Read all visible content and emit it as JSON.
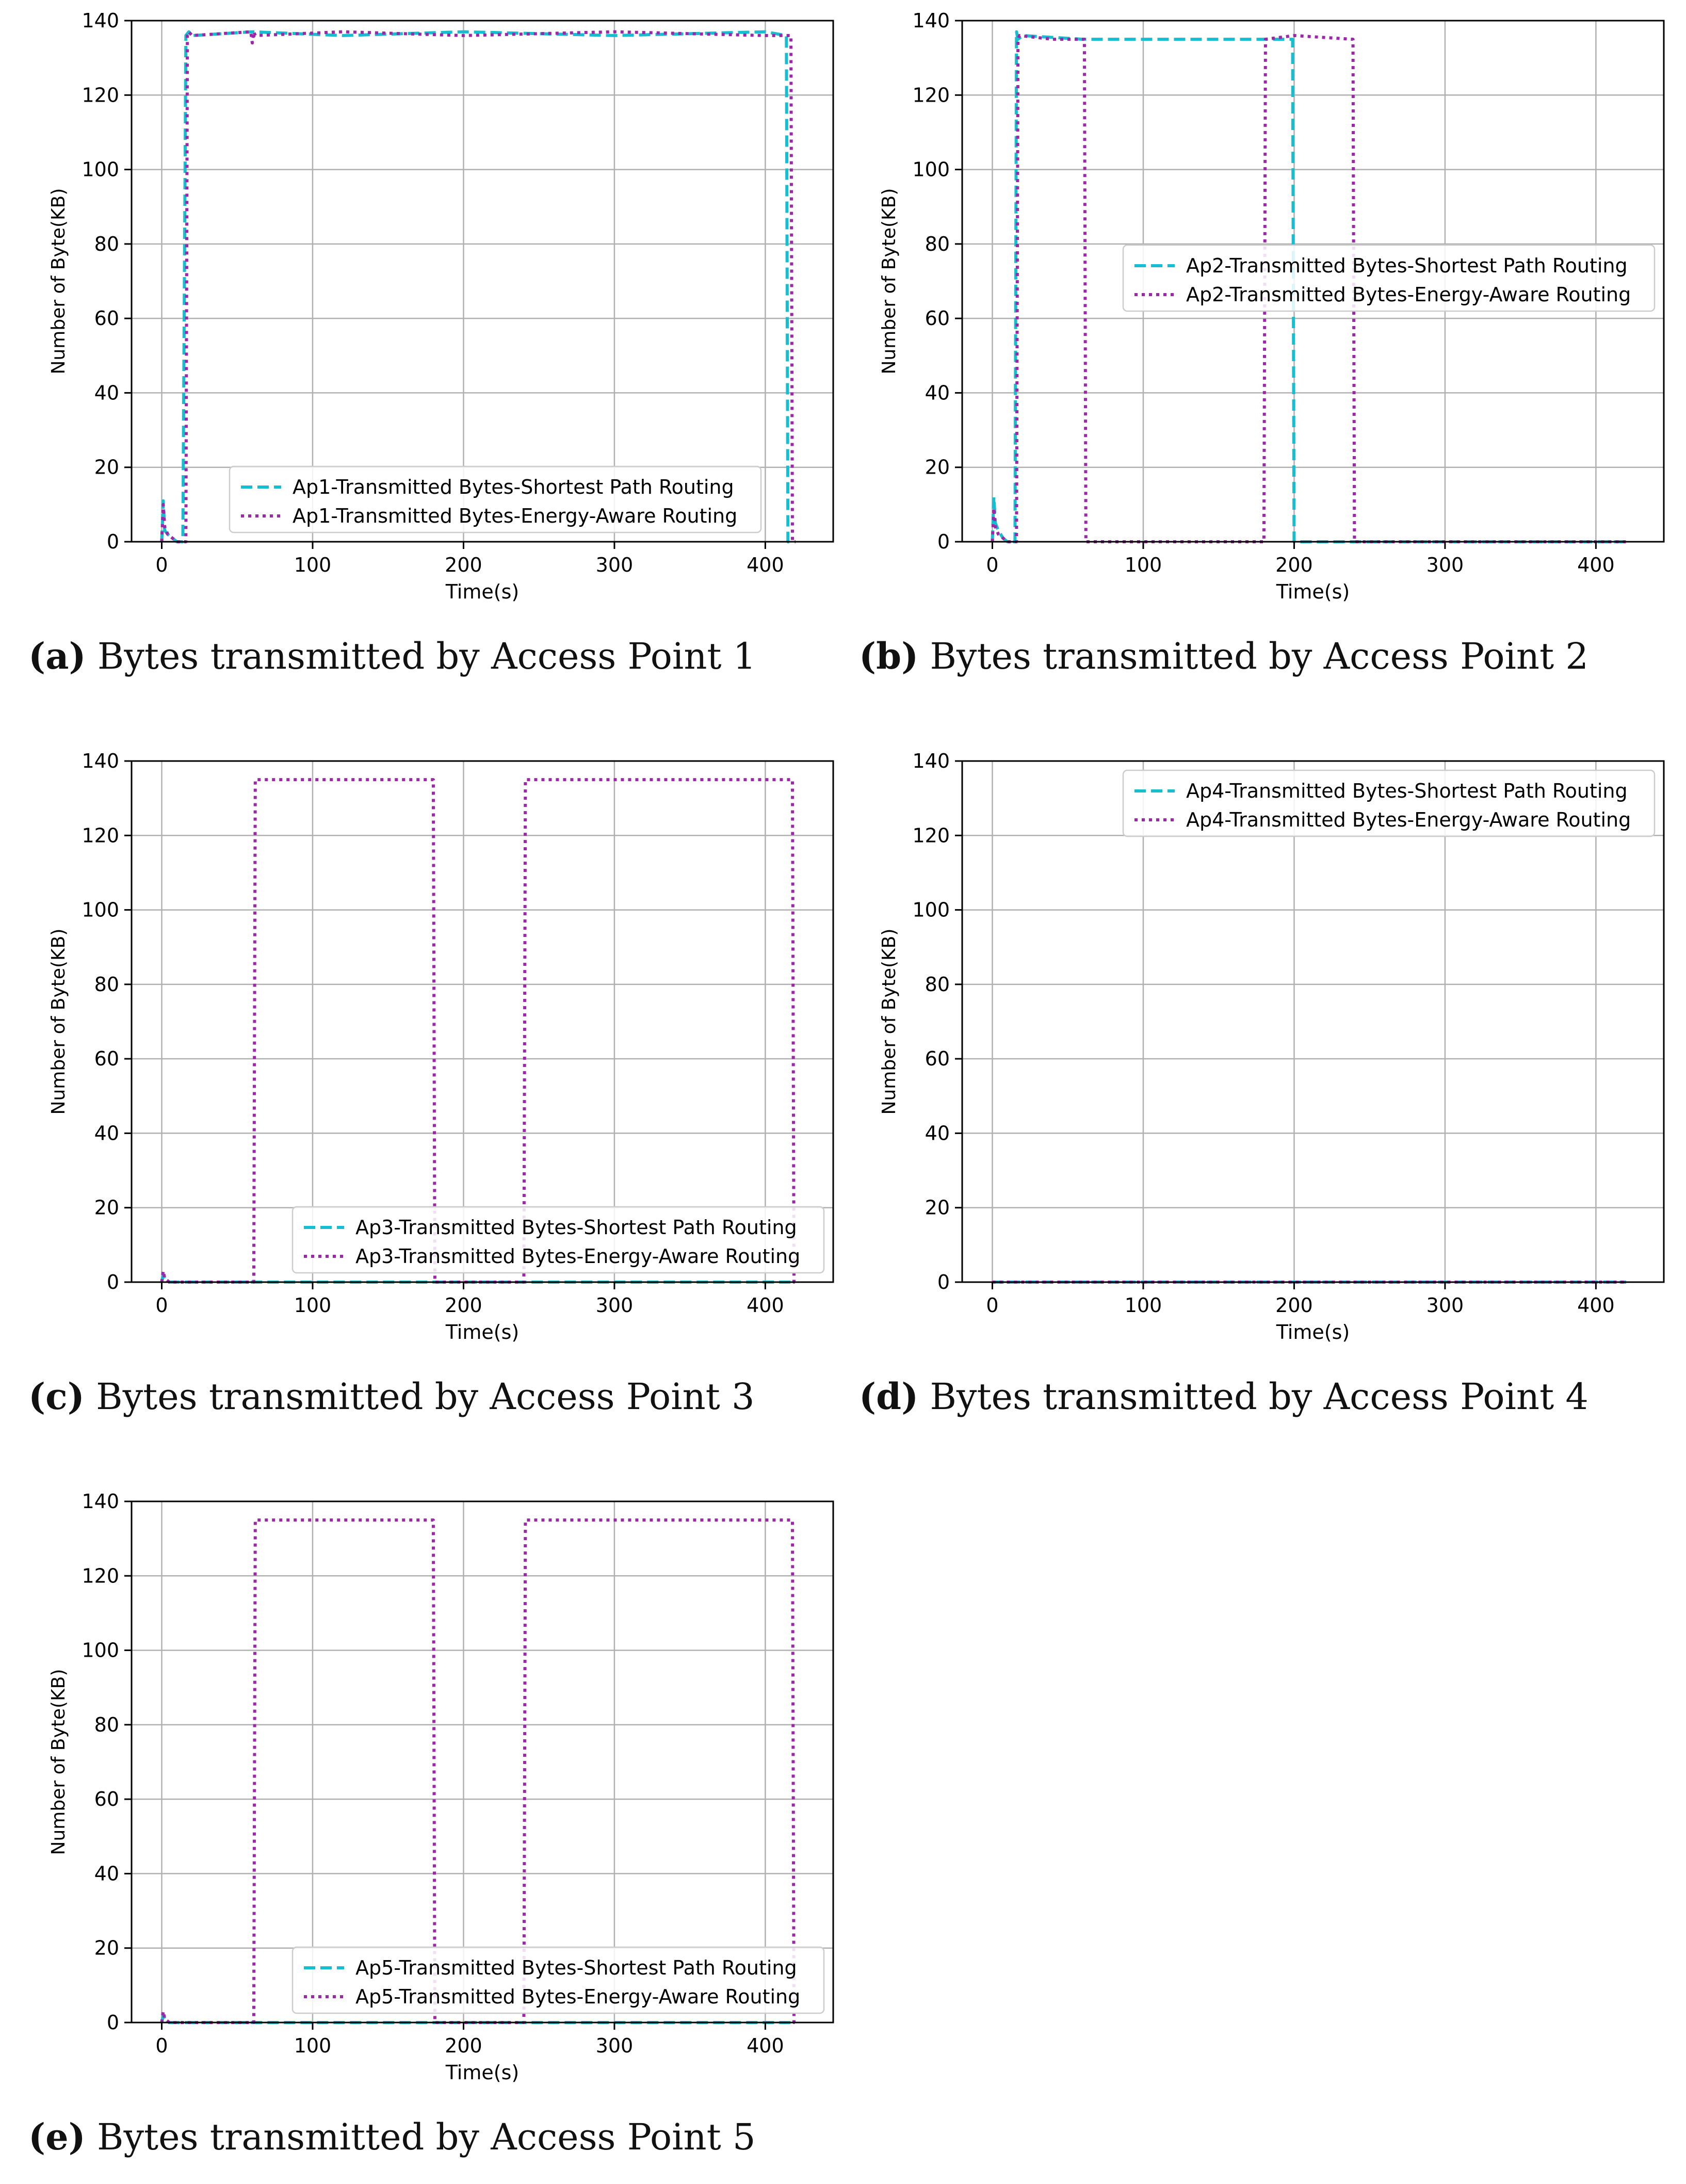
{
  "figure": {
    "colors": {
      "shortest": "#17becf",
      "energy": "#9c27a8",
      "grid": "#b0b0b0",
      "axis": "#000000"
    }
  },
  "chart_data": [
    {
      "id": "a",
      "type": "line",
      "caption_tag": "(a)",
      "caption_text": "Bytes transmitted by Access Point 1",
      "xlabel": "Time(s)",
      "ylabel": "Number of Byte(KB)",
      "xlim": [
        -20,
        445
      ],
      "ylim": [
        0,
        140
      ],
      "xticks": [
        0,
        100,
        200,
        300,
        400
      ],
      "yticks": [
        0,
        20,
        40,
        60,
        80,
        100,
        120,
        140
      ],
      "grid": true,
      "legend_position": "lower-center",
      "series": [
        {
          "name": "Ap1-Transmitted Bytes-Shortest Path Routing",
          "style": "dashed",
          "color": "#17becf",
          "x": [
            0,
            1,
            2,
            4,
            7,
            10,
            14,
            16,
            18,
            20,
            60,
            120,
            200,
            300,
            400,
            414,
            415,
            417
          ],
          "y": [
            0,
            11,
            3,
            2,
            1,
            0,
            0,
            136,
            137,
            136,
            137,
            136,
            137,
            136,
            137,
            136,
            0,
            0
          ]
        },
        {
          "name": "Ap1-Transmitted Bytes-Energy-Aware Routing",
          "style": "dotted",
          "color": "#9c27a8",
          "x": [
            0,
            1,
            2,
            4,
            7,
            10,
            16,
            17,
            18,
            20,
            59,
            60,
            61,
            62,
            120,
            200,
            300,
            400,
            417,
            418,
            420
          ],
          "y": [
            0,
            10,
            4,
            2,
            1,
            0,
            0,
            136,
            137,
            136,
            137,
            134,
            137,
            136,
            137,
            136,
            137,
            136,
            136,
            0,
            0
          ]
        }
      ]
    },
    {
      "id": "b",
      "type": "line",
      "caption_tag": "(b)",
      "caption_text": "Bytes transmitted by Access Point 2",
      "xlabel": "Time(s)",
      "ylabel": "Number of Byte(KB)",
      "xlim": [
        -20,
        445
      ],
      "ylim": [
        0,
        140
      ],
      "xticks": [
        0,
        100,
        200,
        300,
        400
      ],
      "yticks": [
        0,
        20,
        40,
        60,
        80,
        100,
        120,
        140
      ],
      "grid": true,
      "legend_position": "center-right",
      "series": [
        {
          "name": "Ap2-Transmitted Bytes-Shortest Path Routing",
          "style": "dashed",
          "color": "#17becf",
          "x": [
            0,
            1,
            2,
            4,
            7,
            10,
            15,
            16,
            17,
            20,
            60,
            100,
            150,
            199,
            200,
            240,
            300,
            420
          ],
          "y": [
            0,
            12,
            5,
            3,
            1,
            0,
            0,
            137,
            135,
            136,
            135,
            135,
            135,
            135,
            0,
            0,
            0,
            0
          ]
        },
        {
          "name": "Ap2-Transmitted Bytes-Energy-Aware Routing",
          "style": "dotted",
          "color": "#9c27a8",
          "x": [
            0,
            1,
            2,
            4,
            7,
            10,
            16,
            17,
            18,
            40,
            61,
            62,
            100,
            180,
            181,
            200,
            239,
            240,
            300,
            420
          ],
          "y": [
            0,
            9,
            4,
            2,
            1,
            0,
            0,
            135,
            136,
            135,
            135,
            0,
            0,
            0,
            135,
            136,
            135,
            0,
            0,
            0
          ]
        }
      ]
    },
    {
      "id": "c",
      "type": "line",
      "caption_tag": "(c)",
      "caption_text": "Bytes transmitted by Access Point 3",
      "xlabel": "Time(s)",
      "ylabel": "Number of Byte(KB)",
      "xlim": [
        -20,
        445
      ],
      "ylim": [
        0,
        140
      ],
      "xticks": [
        0,
        100,
        200,
        300,
        400
      ],
      "yticks": [
        0,
        20,
        40,
        60,
        80,
        100,
        120,
        140
      ],
      "grid": true,
      "legend_position": "lower-right",
      "series": [
        {
          "name": "Ap3-Transmitted Bytes-Shortest Path Routing",
          "style": "dashed",
          "color": "#17becf",
          "x": [
            0,
            1,
            2,
            5,
            10,
            420
          ],
          "y": [
            0,
            2,
            1,
            0,
            0,
            0
          ]
        },
        {
          "name": "Ap3-Transmitted Bytes-Energy-Aware Routing",
          "style": "dotted",
          "color": "#9c27a8",
          "x": [
            0,
            1,
            2,
            5,
            10,
            61,
            62,
            120,
            180,
            181,
            240,
            241,
            300,
            418,
            419,
            420
          ],
          "y": [
            0,
            3,
            1,
            0,
            0,
            0,
            135,
            135,
            135,
            0,
            0,
            135,
            135,
            135,
            0,
            0
          ]
        }
      ]
    },
    {
      "id": "d",
      "type": "line",
      "caption_tag": "(d)",
      "caption_text": "Bytes transmitted by Access Point 4",
      "xlabel": "Time(s)",
      "ylabel": "Number of Byte(KB)",
      "xlim": [
        -20,
        445
      ],
      "ylim": [
        0,
        140
      ],
      "xticks": [
        0,
        100,
        200,
        300,
        400
      ],
      "yticks": [
        0,
        20,
        40,
        60,
        80,
        100,
        120,
        140
      ],
      "grid": true,
      "legend_position": "upper-right",
      "series": [
        {
          "name": "Ap4-Transmitted Bytes-Shortest Path Routing",
          "style": "dashed",
          "color": "#17becf",
          "x": [
            0,
            420
          ],
          "y": [
            0,
            0
          ]
        },
        {
          "name": "Ap4-Transmitted Bytes-Energy-Aware Routing",
          "style": "dotted",
          "color": "#9c27a8",
          "x": [
            0,
            420
          ],
          "y": [
            0,
            0
          ]
        }
      ]
    },
    {
      "id": "e",
      "type": "line",
      "caption_tag": "(e)",
      "caption_text": "Bytes transmitted by Access Point 5",
      "xlabel": "Time(s)",
      "ylabel": "Number of Byte(KB)",
      "xlim": [
        -20,
        445
      ],
      "ylim": [
        0,
        140
      ],
      "xticks": [
        0,
        100,
        200,
        300,
        400
      ],
      "yticks": [
        0,
        20,
        40,
        60,
        80,
        100,
        120,
        140
      ],
      "grid": true,
      "legend_position": "lower-right",
      "series": [
        {
          "name": "Ap5-Transmitted Bytes-Shortest Path Routing",
          "style": "dashed",
          "color": "#17becf",
          "x": [
            0,
            1,
            2,
            5,
            10,
            420
          ],
          "y": [
            0,
            2,
            1,
            0,
            0,
            0
          ]
        },
        {
          "name": "Ap5-Transmitted Bytes-Energy-Aware Routing",
          "style": "dotted",
          "color": "#9c27a8",
          "x": [
            0,
            1,
            2,
            5,
            10,
            61,
            62,
            120,
            180,
            181,
            240,
            241,
            300,
            418,
            419,
            420
          ],
          "y": [
            0,
            3,
            1,
            0,
            0,
            0,
            135,
            135,
            135,
            0,
            0,
            135,
            135,
            135,
            0,
            0
          ]
        }
      ]
    }
  ]
}
